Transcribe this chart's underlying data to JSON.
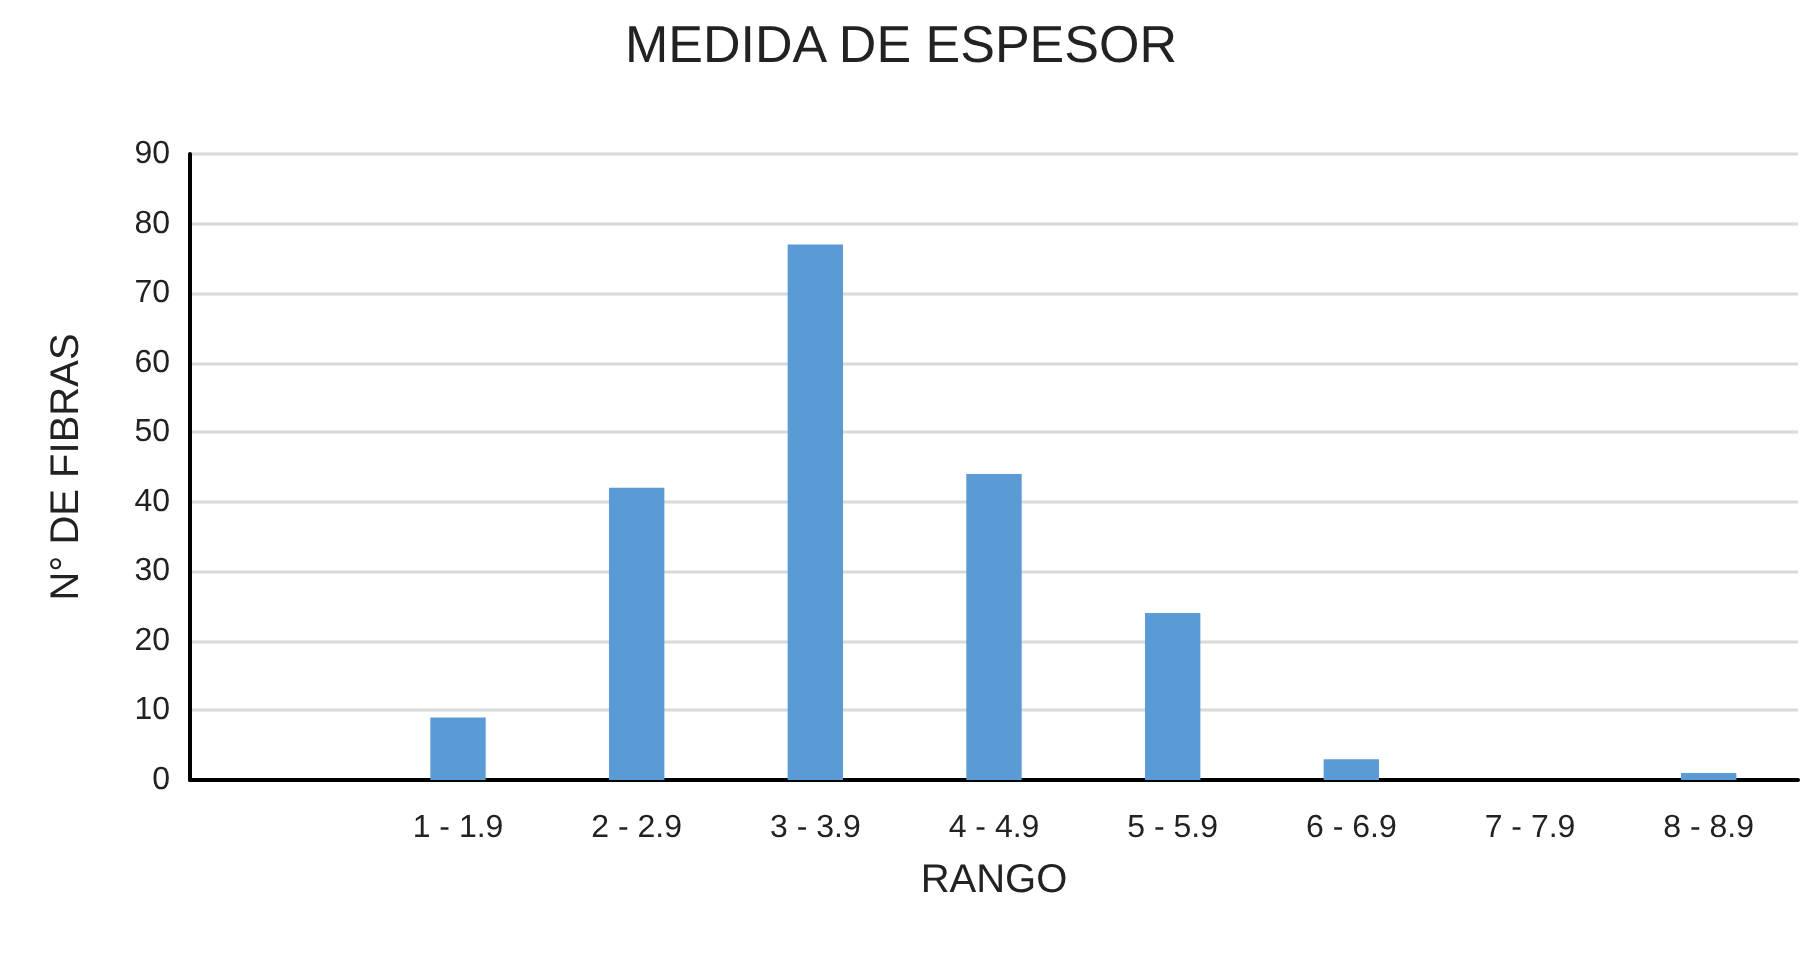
{
  "chart_data": {
    "type": "bar",
    "title": "MEDIDA DE ESPESOR",
    "xlabel": "RANGO",
    "ylabel": "N° DE FIBRAS",
    "categories": [
      null,
      "1 - 1.9",
      "2 - 2.9",
      "3 - 3.9",
      "4 - 4.9",
      "5 - 5.9",
      "6 - 6.9",
      "7 - 7.9",
      "8 - 8.9"
    ],
    "values": [
      0,
      9,
      42,
      77,
      44,
      24,
      3,
      0,
      1
    ],
    "color": "#5b9bd5",
    "ylim": [
      0,
      90
    ],
    "yticks": [
      0,
      10,
      20,
      30,
      40,
      50,
      60,
      70,
      80,
      90
    ],
    "grid": "y"
  }
}
